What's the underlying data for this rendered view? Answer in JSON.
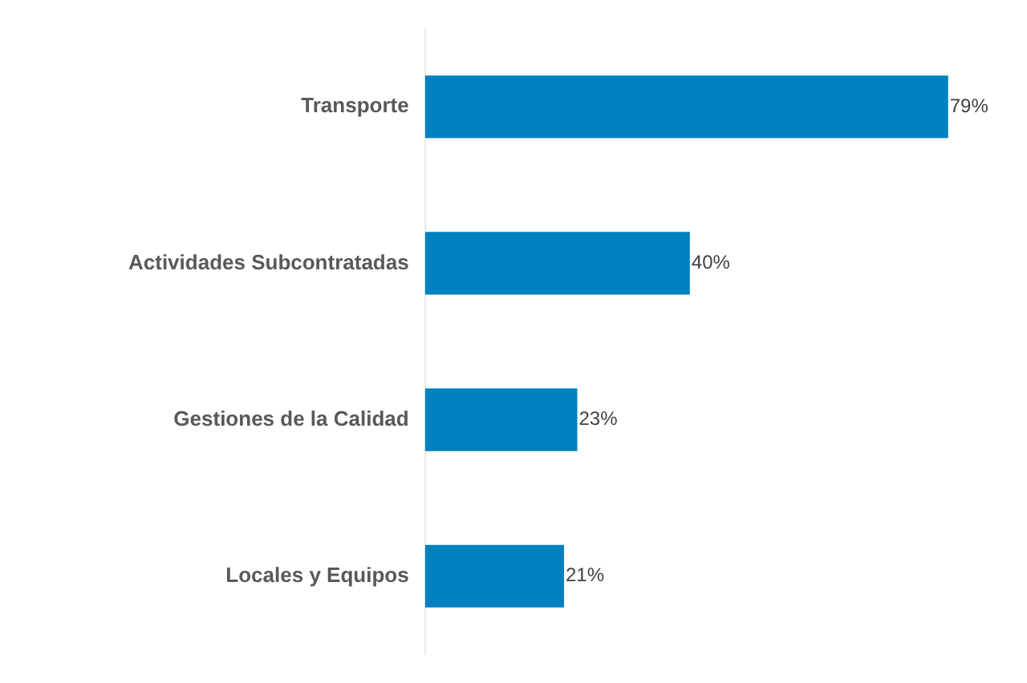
{
  "chart_data": {
    "type": "bar",
    "orientation": "horizontal",
    "categories": [
      "Transporte",
      "Actividades Subcontratadas",
      "Gestiones de la Calidad",
      "Locales y Equipos"
    ],
    "values": [
      79,
      40,
      23,
      21
    ],
    "color": "#0081c0",
    "value_labels": [
      "79%",
      "40%",
      "23%",
      "21%"
    ],
    "tick_labels": "y",
    "grid": false,
    "legend": false
  }
}
